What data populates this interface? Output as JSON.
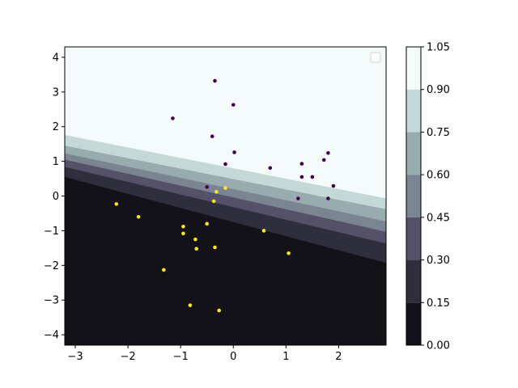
{
  "chart_data": {
    "type": "contour-scatter",
    "title": "",
    "xlabel": "",
    "ylabel": "",
    "xlim": [
      -3.2,
      2.9
    ],
    "ylim": [
      -4.3,
      4.3
    ],
    "xticks": [
      -3,
      -2,
      -1,
      0,
      1,
      2
    ],
    "yticks": [
      -4,
      -3,
      -2,
      -1,
      0,
      1,
      2,
      3,
      4
    ],
    "contour": {
      "levels": [
        0.0,
        0.15,
        0.3,
        0.45,
        0.6,
        0.75,
        0.9,
        1.05
      ],
      "level_labels": [
        "0.00",
        "0.15",
        "0.30",
        "0.45",
        "0.60",
        "0.75",
        "0.90",
        "1.05"
      ],
      "colors": [
        "#131218",
        "#2f2e3c",
        "#545168",
        "#7a8591",
        "#98abaf",
        "#c4d9d7",
        "#f5fafa"
      ],
      "boundary_lines": [
        {
          "level": 0.15,
          "y_left": 0.55,
          "y_right": -1.93
        },
        {
          "level": 0.3,
          "y_left": 0.84,
          "y_right": -1.37
        },
        {
          "level": 0.45,
          "y_left": 1.05,
          "y_right": -1.03
        },
        {
          "level": 0.6,
          "y_left": 1.23,
          "y_right": -0.73
        },
        {
          "level": 0.75,
          "y_left": 1.45,
          "y_right": -0.38
        },
        {
          "level": 0.9,
          "y_left": 1.76,
          "y_right": -0.07
        },
        {
          "level": 1.05,
          "y_left": 2.35,
          "y_right": 0.3
        }
      ]
    },
    "legend": {
      "placement": "upper right",
      "entries": []
    },
    "colorbar": {
      "ticks": [
        "0.00",
        "0.15",
        "0.30",
        "0.45",
        "0.60",
        "0.75",
        "0.90",
        "1.05"
      ]
    },
    "series": [
      {
        "color": "#440154",
        "points": [
          [
            -0.35,
            3.32
          ],
          [
            0.0,
            2.63
          ],
          [
            -1.15,
            2.24
          ],
          [
            -0.4,
            1.72
          ],
          [
            0.02,
            1.26
          ],
          [
            1.8,
            1.24
          ],
          [
            -0.15,
            0.92
          ],
          [
            1.3,
            0.93
          ],
          [
            1.72,
            1.04
          ],
          [
            0.7,
            0.81
          ],
          [
            1.3,
            0.55
          ],
          [
            1.5,
            0.55
          ],
          [
            1.9,
            0.29
          ],
          [
            -0.5,
            0.26
          ],
          [
            1.23,
            -0.07
          ],
          [
            1.8,
            -0.07
          ]
        ]
      },
      {
        "color": "#fde725",
        "points": [
          [
            -0.15,
            0.23
          ],
          [
            -0.32,
            0.12
          ],
          [
            -0.37,
            -0.15
          ],
          [
            -2.22,
            -0.23
          ],
          [
            -1.8,
            -0.6
          ],
          [
            -0.5,
            -0.8
          ],
          [
            -0.95,
            -0.88
          ],
          [
            -0.95,
            -1.08
          ],
          [
            -0.72,
            -1.25
          ],
          [
            0.58,
            -1.0
          ],
          [
            -0.35,
            -1.48
          ],
          [
            -0.7,
            -1.52
          ],
          [
            1.05,
            -1.65
          ],
          [
            -1.32,
            -2.13
          ],
          [
            -0.82,
            -3.15
          ],
          [
            -0.27,
            -3.3
          ]
        ]
      }
    ]
  }
}
